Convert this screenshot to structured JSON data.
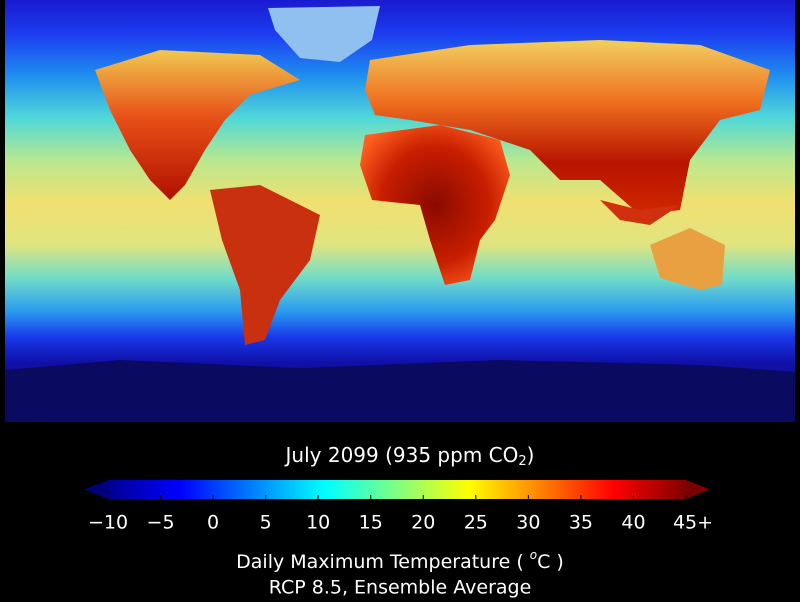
{
  "chart_data": {
    "type": "colorbar",
    "title": "July 2099 (935 ppm CO",
    "title_subscript": "2",
    "title_end": ")",
    "label": "Daily Maximum Temperature ( ",
    "label_superscript": "o",
    "label_end": "C )",
    "subtitle": "RCP 8.5, Ensemble Average",
    "colormap": "jet",
    "colors": [
      "#00008f",
      "#0000ff",
      "#0080ff",
      "#00ffff",
      "#80ff80",
      "#ffff00",
      "#ff8000",
      "#ff0000",
      "#800000"
    ],
    "under_color": "#00007a",
    "over_color": "#7a0000",
    "xlim": [
      -10,
      45
    ],
    "xticks": [
      {
        "value": -10,
        "label": "−10"
      },
      {
        "value": -5,
        "label": "−5"
      },
      0,
      5,
      10,
      15,
      20,
      25,
      30,
      35,
      40,
      {
        "value": 45,
        "label": "45+"
      }
    ]
  }
}
